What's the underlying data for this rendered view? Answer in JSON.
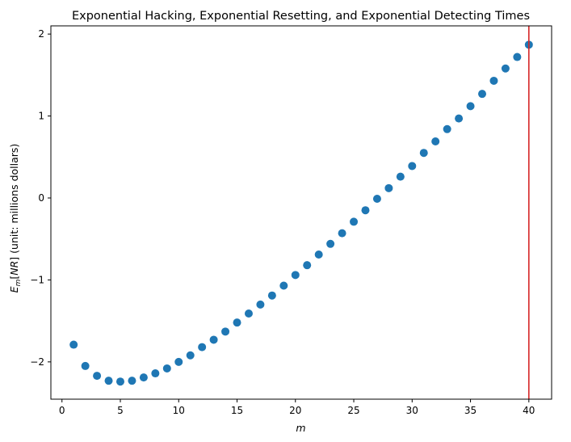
{
  "chart_data": {
    "type": "scatter",
    "title": "Exponential Hacking, Exponential Resetting, and Exponential Detecting Times",
    "xlabel": "m",
    "ylabel": "E_m[NR] (unit: millions dollars)",
    "ylabel_parts": {
      "E": "E",
      "m": "m",
      "bracket_open": "[",
      "NR": "NR",
      "bracket_close": "]",
      "rest": " (unit: millions dollars)"
    },
    "xlim": [
      -0.95,
      41.95
    ],
    "ylim": [
      -2.455,
      2.1
    ],
    "xticks": [
      0,
      5,
      10,
      15,
      20,
      25,
      30,
      35,
      40
    ],
    "yticks": [
      -2,
      -1,
      0,
      1,
      2
    ],
    "ytick_labels": [
      "−2",
      "−1",
      "0",
      "1",
      "2"
    ],
    "grid": false,
    "point_color": "#1f77b4",
    "vline": {
      "x": 40,
      "color": "#d62728"
    },
    "x": [
      1,
      2,
      3,
      4,
      5,
      6,
      7,
      8,
      9,
      10,
      11,
      12,
      13,
      14,
      15,
      16,
      17,
      18,
      19,
      20,
      21,
      22,
      23,
      24,
      25,
      26,
      27,
      28,
      29,
      30,
      31,
      32,
      33,
      34,
      35,
      36,
      37,
      38,
      39,
      40
    ],
    "y": [
      -1.79,
      -2.05,
      -2.17,
      -2.23,
      -2.24,
      -2.23,
      -2.19,
      -2.14,
      -2.08,
      -2.0,
      -1.92,
      -1.82,
      -1.73,
      -1.63,
      -1.52,
      -1.41,
      -1.3,
      -1.19,
      -1.07,
      -0.94,
      -0.82,
      -0.69,
      -0.56,
      -0.43,
      -0.29,
      -0.15,
      -0.01,
      0.12,
      0.26,
      0.39,
      0.55,
      0.69,
      0.84,
      0.97,
      1.12,
      1.27,
      1.43,
      1.58,
      1.72,
      1.87
    ]
  }
}
